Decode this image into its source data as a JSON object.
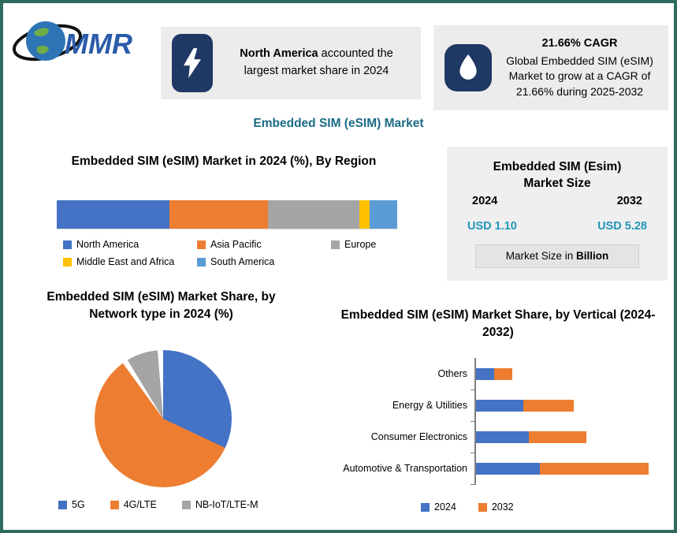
{
  "page": {
    "title": "Embedded SIM (eSIM) Market",
    "logo_text": "MMR"
  },
  "callouts": [
    {
      "icon": "lightning-icon",
      "bold": "North America",
      "rest": " accounted the largest market share in 2024"
    },
    {
      "icon": "flame-icon",
      "heading": "21.66% CAGR",
      "body": "Global Embedded SIM (eSIM) Market to grow at a CAGR of 21.66% during 2025-2032"
    }
  ],
  "market_size": {
    "title": "Embedded SIM (Esim) Market Size",
    "year_start": "2024",
    "year_end": "2032",
    "value_start": "USD 1.10",
    "value_end": "USD 5.28",
    "note_prefix": "Market Size in ",
    "note_bold": "Billion"
  },
  "colors": {
    "accent_teal": "#1b6b85",
    "value_teal": "#2196b8",
    "navy_icon_bg": "#203864",
    "box_gray": "#ececec",
    "border_green": "#2f6b5e",
    "series_blue": "#4472c4",
    "series_orange": "#ed7d31",
    "series_gray": "#a5a5a5",
    "series_yellow": "#ffc000",
    "series_lightblue": "#5b9bd5"
  },
  "chart_data": [
    {
      "type": "bar",
      "subtype": "stacked-horizontal-single",
      "title": "Embedded SIM (eSIM) Market in 2024 (%), By Region",
      "categories": [
        "North America",
        "Asia Pacific",
        "Europe",
        "Middle East and Africa",
        "South America"
      ],
      "values": [
        33,
        29,
        27,
        3,
        8
      ],
      "colors": [
        "#4472c4",
        "#ed7d31",
        "#a5a5a5",
        "#ffc000",
        "#5b9bd5"
      ],
      "legend_position": "bottom"
    },
    {
      "type": "pie",
      "title": "Embedded SIM (eSIM) Market Share, by Network type in 2024 (%)",
      "categories": [
        "5G",
        "4G/LTE",
        "NB-IoT/LTE-M"
      ],
      "values": [
        32,
        58,
        10
      ],
      "colors": [
        "#4472c4",
        "#ed7d31",
        "#a5a5a5"
      ],
      "legend_position": "bottom"
    },
    {
      "type": "bar",
      "subtype": "stacked-horizontal",
      "title": "Embedded SIM (eSIM) Market Share, by Vertical (2024-2032)",
      "categories": [
        "Others",
        "Energy & Utilities",
        "Consumer Electronics",
        "Automotive & Transportation"
      ],
      "series": [
        {
          "name": "2024",
          "color": "#4472c4",
          "values": [
            1.0,
            2.6,
            2.9,
            3.5
          ]
        },
        {
          "name": "2032",
          "color": "#ed7d31",
          "values": [
            1.0,
            2.8,
            3.2,
            6.0
          ]
        }
      ],
      "xlim": [
        0,
        10
      ],
      "legend_position": "bottom"
    }
  ]
}
